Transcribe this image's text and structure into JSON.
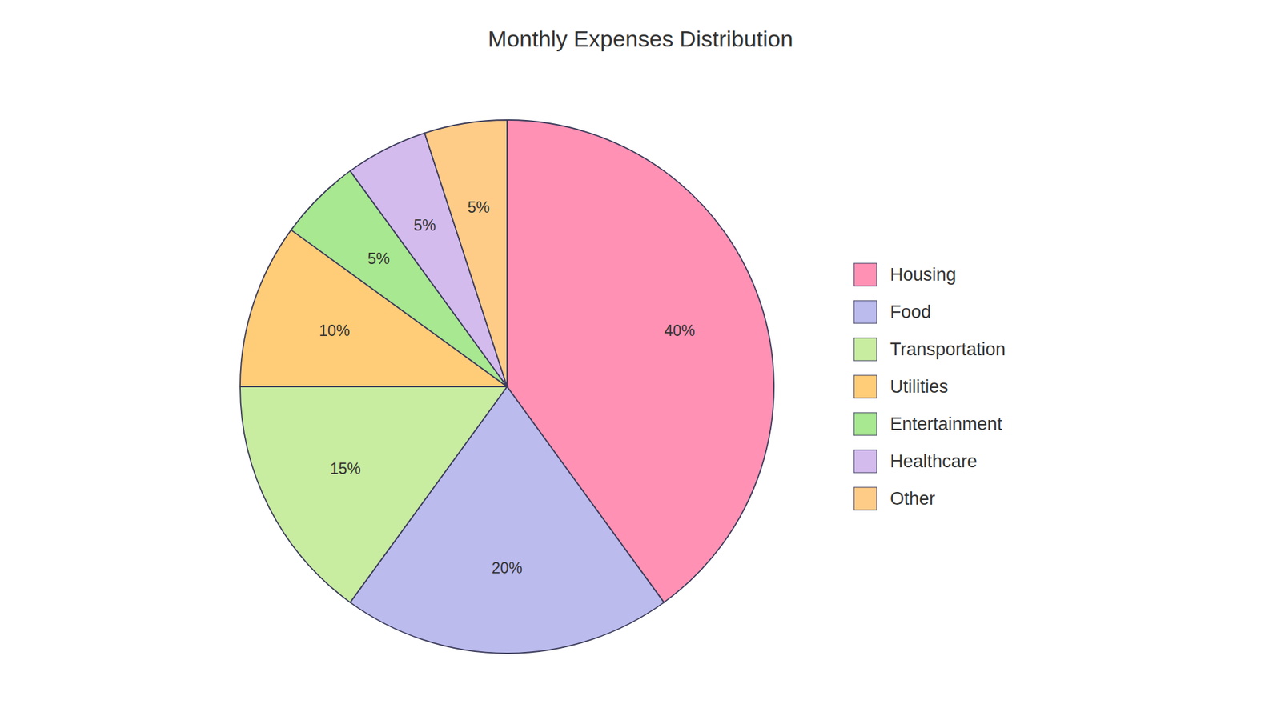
{
  "chart_data": {
    "type": "pie",
    "title": "Monthly Expenses Distribution",
    "categories": [
      "Housing",
      "Food",
      "Transportation",
      "Utilities",
      "Entertainment",
      "Healthcare",
      "Other"
    ],
    "values": [
      40,
      20,
      15,
      10,
      5,
      5,
      5
    ],
    "value_labels": [
      "40%",
      "20%",
      "15%",
      "10%",
      "5%",
      "5%",
      "5%"
    ],
    "colors": [
      "#FF91B4",
      "#BBBBEE",
      "#C8ECA0",
      "#FFCC77",
      "#A8E890",
      "#D4BBEE",
      "#FFCC88"
    ],
    "data_labels": true,
    "legend": "right"
  }
}
